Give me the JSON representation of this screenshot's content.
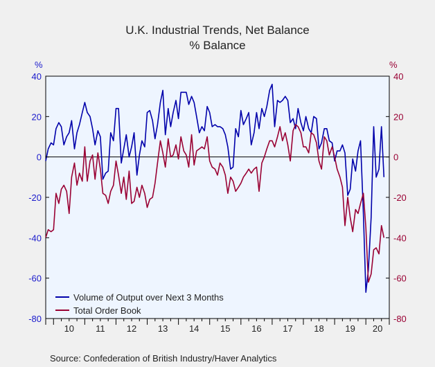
{
  "chart_data": {
    "type": "line",
    "title": "U.K. Industrial Trends, Net Balance",
    "subtitle": "% Balance",
    "ylabel_left": "%",
    "ylabel_right": "%",
    "ylim": [
      -80,
      40
    ],
    "yticks": [
      40,
      20,
      0,
      -20,
      -40,
      -60,
      -80
    ],
    "x_tick_labels": [
      "10",
      "11",
      "12",
      "13",
      "14",
      "15",
      "16",
      "17",
      "18",
      "19",
      "20"
    ],
    "x_range": [
      2009.75,
      2020.75
    ],
    "grid": false,
    "zero_line": true,
    "legend_position": "bottom-left",
    "colors": {
      "plot_bg": "#eef5ff",
      "axis_left": "#1a1acc",
      "axis_right": "#990033"
    },
    "source": "Source:   Confederation of British Industry/Haver Analytics",
    "series": [
      {
        "name": "Volume of Output over Next 3 Months",
        "color": "#0000aa",
        "points": [
          [
            2009.75,
            -2
          ],
          [
            2009.83,
            4
          ],
          [
            2009.92,
            7
          ],
          [
            2010.0,
            6
          ],
          [
            2010.08,
            14
          ],
          [
            2010.17,
            17
          ],
          [
            2010.25,
            15
          ],
          [
            2010.33,
            6
          ],
          [
            2010.42,
            10
          ],
          [
            2010.5,
            12
          ],
          [
            2010.58,
            18
          ],
          [
            2010.67,
            4
          ],
          [
            2010.75,
            12
          ],
          [
            2010.83,
            16
          ],
          [
            2010.92,
            22
          ],
          [
            2011.0,
            27
          ],
          [
            2011.08,
            22
          ],
          [
            2011.17,
            20
          ],
          [
            2011.25,
            14
          ],
          [
            2011.33,
            6
          ],
          [
            2011.42,
            13
          ],
          [
            2011.5,
            10
          ],
          [
            2011.58,
            -11
          ],
          [
            2011.67,
            -8
          ],
          [
            2011.75,
            -7
          ],
          [
            2011.83,
            12
          ],
          [
            2011.92,
            8
          ],
          [
            2012.0,
            24
          ],
          [
            2012.08,
            24
          ],
          [
            2012.17,
            -3
          ],
          [
            2012.25,
            4
          ],
          [
            2012.33,
            11
          ],
          [
            2012.42,
            0
          ],
          [
            2012.5,
            5
          ],
          [
            2012.58,
            12
          ],
          [
            2012.67,
            -9
          ],
          [
            2012.75,
            1
          ],
          [
            2012.83,
            8
          ],
          [
            2012.92,
            5
          ],
          [
            2013.0,
            22
          ],
          [
            2013.08,
            23
          ],
          [
            2013.17,
            18
          ],
          [
            2013.25,
            9
          ],
          [
            2013.33,
            16
          ],
          [
            2013.42,
            27
          ],
          [
            2013.5,
            33
          ],
          [
            2013.58,
            11
          ],
          [
            2013.67,
            24
          ],
          [
            2013.75,
            15
          ],
          [
            2013.83,
            22
          ],
          [
            2013.92,
            28
          ],
          [
            2014.0,
            19
          ],
          [
            2014.08,
            32
          ],
          [
            2014.17,
            32
          ],
          [
            2014.25,
            32
          ],
          [
            2014.33,
            26
          ],
          [
            2014.42,
            30
          ],
          [
            2014.5,
            27
          ],
          [
            2014.58,
            20
          ],
          [
            2014.67,
            12
          ],
          [
            2014.75,
            15
          ],
          [
            2014.83,
            13
          ],
          [
            2014.92,
            25
          ],
          [
            2015.0,
            22
          ],
          [
            2015.08,
            15
          ],
          [
            2015.17,
            16
          ],
          [
            2015.25,
            15
          ],
          [
            2015.33,
            15
          ],
          [
            2015.42,
            14
          ],
          [
            2015.5,
            11
          ],
          [
            2015.58,
            5
          ],
          [
            2015.67,
            -6
          ],
          [
            2015.75,
            -5
          ],
          [
            2015.83,
            14
          ],
          [
            2015.92,
            10
          ],
          [
            2016.0,
            23
          ],
          [
            2016.08,
            16
          ],
          [
            2016.17,
            19
          ],
          [
            2016.25,
            22
          ],
          [
            2016.33,
            6
          ],
          [
            2016.42,
            12
          ],
          [
            2016.5,
            22
          ],
          [
            2016.58,
            14
          ],
          [
            2016.67,
            24
          ],
          [
            2016.75,
            20
          ],
          [
            2016.83,
            25
          ],
          [
            2016.92,
            33
          ],
          [
            2017.0,
            36
          ],
          [
            2017.08,
            15
          ],
          [
            2017.17,
            28
          ],
          [
            2017.25,
            27
          ],
          [
            2017.33,
            28
          ],
          [
            2017.42,
            30
          ],
          [
            2017.5,
            28
          ],
          [
            2017.58,
            17
          ],
          [
            2017.67,
            19
          ],
          [
            2017.75,
            14
          ],
          [
            2017.83,
            24
          ],
          [
            2017.92,
            17
          ],
          [
            2018.0,
            13
          ],
          [
            2018.08,
            20
          ],
          [
            2018.17,
            14
          ],
          [
            2018.25,
            12
          ],
          [
            2018.33,
            20
          ],
          [
            2018.42,
            19
          ],
          [
            2018.5,
            4
          ],
          [
            2018.58,
            7
          ],
          [
            2018.67,
            14
          ],
          [
            2018.75,
            14
          ],
          [
            2018.83,
            8
          ],
          [
            2018.92,
            7
          ],
          [
            2019.0,
            -2
          ],
          [
            2019.08,
            3
          ],
          [
            2019.17,
            3
          ],
          [
            2019.25,
            6
          ],
          [
            2019.33,
            2
          ],
          [
            2019.42,
            -19
          ],
          [
            2019.5,
            -16
          ],
          [
            2019.58,
            -1
          ],
          [
            2019.67,
            -7
          ],
          [
            2019.75,
            3
          ],
          [
            2019.83,
            8
          ],
          [
            2019.92,
            -28
          ],
          [
            2020.0,
            -67
          ],
          [
            2020.08,
            -56
          ],
          [
            2020.17,
            -30
          ],
          [
            2020.25,
            15
          ],
          [
            2020.33,
            -10
          ],
          [
            2020.42,
            -6
          ],
          [
            2020.5,
            15
          ],
          [
            2020.58,
            -10
          ]
        ]
      },
      {
        "name": "Total Order Book",
        "color": "#990033",
        "points": [
          [
            2009.75,
            -40
          ],
          [
            2009.83,
            -36
          ],
          [
            2009.92,
            -37
          ],
          [
            2010.0,
            -36
          ],
          [
            2010.08,
            -18
          ],
          [
            2010.17,
            -23
          ],
          [
            2010.25,
            -16
          ],
          [
            2010.33,
            -14
          ],
          [
            2010.42,
            -17
          ],
          [
            2010.5,
            -28
          ],
          [
            2010.58,
            -10
          ],
          [
            2010.67,
            -3
          ],
          [
            2010.75,
            -14
          ],
          [
            2010.83,
            -8
          ],
          [
            2010.92,
            -12
          ],
          [
            2011.0,
            5
          ],
          [
            2011.08,
            -12
          ],
          [
            2011.17,
            -2
          ],
          [
            2011.25,
            1
          ],
          [
            2011.33,
            -11
          ],
          [
            2011.42,
            2
          ],
          [
            2011.5,
            -6
          ],
          [
            2011.58,
            -18
          ],
          [
            2011.67,
            -19
          ],
          [
            2011.75,
            -23
          ],
          [
            2011.83,
            -17
          ],
          [
            2011.92,
            -14
          ],
          [
            2012.0,
            -2
          ],
          [
            2012.08,
            -9
          ],
          [
            2012.17,
            -18
          ],
          [
            2012.25,
            -10
          ],
          [
            2012.33,
            -21
          ],
          [
            2012.42,
            -7
          ],
          [
            2012.5,
            -23
          ],
          [
            2012.58,
            -22
          ],
          [
            2012.67,
            -15
          ],
          [
            2012.75,
            -20
          ],
          [
            2012.83,
            -14
          ],
          [
            2012.92,
            -18
          ],
          [
            2013.0,
            -25
          ],
          [
            2013.08,
            -21
          ],
          [
            2013.17,
            -20
          ],
          [
            2013.25,
            -13
          ],
          [
            2013.33,
            -3
          ],
          [
            2013.42,
            8
          ],
          [
            2013.5,
            2
          ],
          [
            2013.58,
            -5
          ],
          [
            2013.67,
            9
          ],
          [
            2013.75,
            0
          ],
          [
            2013.83,
            1
          ],
          [
            2013.92,
            6
          ],
          [
            2014.0,
            -1
          ],
          [
            2014.08,
            10
          ],
          [
            2014.17,
            3
          ],
          [
            2014.25,
            1
          ],
          [
            2014.33,
            -5
          ],
          [
            2014.42,
            11
          ],
          [
            2014.5,
            -4
          ],
          [
            2014.58,
            3
          ],
          [
            2014.67,
            4
          ],
          [
            2014.75,
            5
          ],
          [
            2014.83,
            4
          ],
          [
            2014.92,
            10
          ],
          [
            2015.0,
            -2
          ],
          [
            2015.08,
            -5
          ],
          [
            2015.17,
            -6
          ],
          [
            2015.25,
            -9
          ],
          [
            2015.33,
            -3
          ],
          [
            2015.42,
            -5
          ],
          [
            2015.5,
            -9
          ],
          [
            2015.58,
            -18
          ],
          [
            2015.67,
            -10
          ],
          [
            2015.75,
            -12
          ],
          [
            2015.83,
            -17
          ],
          [
            2015.92,
            -15
          ],
          [
            2016.0,
            -13
          ],
          [
            2016.08,
            -10
          ],
          [
            2016.17,
            -8
          ],
          [
            2016.25,
            -6
          ],
          [
            2016.33,
            -8
          ],
          [
            2016.42,
            -6
          ],
          [
            2016.5,
            -5
          ],
          [
            2016.58,
            -17
          ],
          [
            2016.67,
            -3
          ],
          [
            2016.75,
            0
          ],
          [
            2016.83,
            4
          ],
          [
            2016.92,
            8
          ],
          [
            2017.0,
            8
          ],
          [
            2017.08,
            5
          ],
          [
            2017.17,
            10
          ],
          [
            2017.25,
            15
          ],
          [
            2017.33,
            8
          ],
          [
            2017.42,
            12
          ],
          [
            2017.5,
            6
          ],
          [
            2017.58,
            -2
          ],
          [
            2017.67,
            13
          ],
          [
            2017.75,
            16
          ],
          [
            2017.83,
            15
          ],
          [
            2017.92,
            12
          ],
          [
            2018.0,
            5
          ],
          [
            2018.08,
            5
          ],
          [
            2018.17,
            2
          ],
          [
            2018.25,
            12
          ],
          [
            2018.33,
            11
          ],
          [
            2018.42,
            7
          ],
          [
            2018.5,
            -2
          ],
          [
            2018.58,
            -6
          ],
          [
            2018.67,
            10
          ],
          [
            2018.75,
            8
          ],
          [
            2018.83,
            1
          ],
          [
            2018.92,
            5
          ],
          [
            2019.0,
            0
          ],
          [
            2019.08,
            -6
          ],
          [
            2019.17,
            -10
          ],
          [
            2019.25,
            -15
          ],
          [
            2019.33,
            -34
          ],
          [
            2019.42,
            -20
          ],
          [
            2019.5,
            -30
          ],
          [
            2019.58,
            -37
          ],
          [
            2019.67,
            -26
          ],
          [
            2019.75,
            -28
          ],
          [
            2019.83,
            -23
          ],
          [
            2019.92,
            -18
          ],
          [
            2020.0,
            -35
          ],
          [
            2020.08,
            -62
          ],
          [
            2020.17,
            -58
          ],
          [
            2020.25,
            -46
          ],
          [
            2020.33,
            -45
          ],
          [
            2020.42,
            -48
          ],
          [
            2020.5,
            -34
          ],
          [
            2020.58,
            -40
          ]
        ]
      }
    ]
  }
}
